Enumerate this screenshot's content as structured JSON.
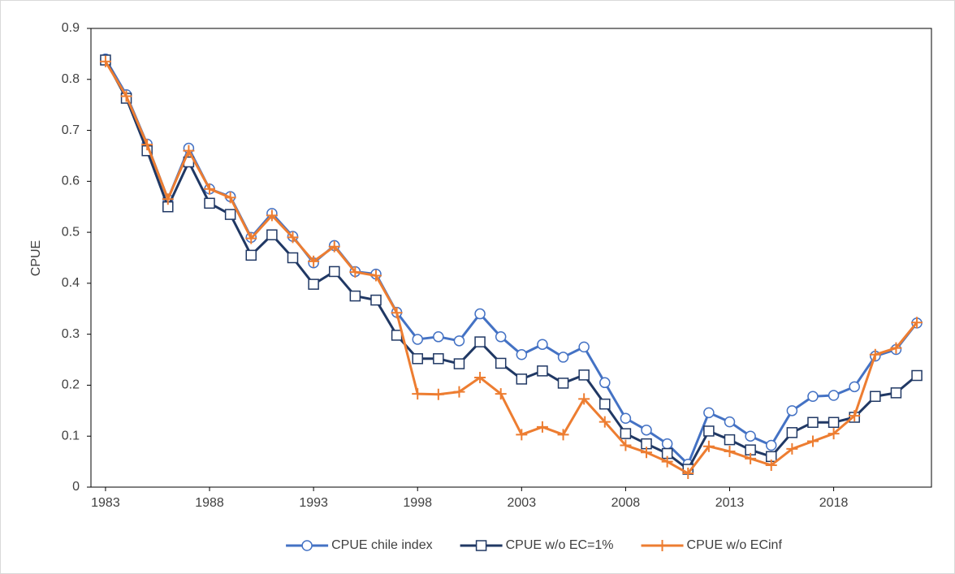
{
  "chart_data": {
    "type": "line",
    "y_label": "CPUE",
    "x": [
      1983,
      1984,
      1985,
      1986,
      1987,
      1988,
      1989,
      1990,
      1991,
      1992,
      1993,
      1994,
      1995,
      1996,
      1997,
      1998,
      1999,
      2000,
      2001,
      2002,
      2003,
      2004,
      2005,
      2006,
      2007,
      2008,
      2009,
      2010,
      2011,
      2012,
      2013,
      2014,
      2015,
      2016,
      2017,
      2018,
      2019,
      2020,
      2021,
      2022
    ],
    "xlim": [
      1982.3,
      2022.7
    ],
    "xticks": [
      1983,
      1988,
      1993,
      1998,
      2003,
      2008,
      2013,
      2018
    ],
    "ylim": [
      0,
      0.9
    ],
    "yticks": [
      0,
      0.1,
      0.2,
      0.3,
      0.4,
      0.5,
      0.6,
      0.7,
      0.8,
      0.9
    ],
    "legend": "bottom",
    "series": [
      {
        "name": "CPUE chile index",
        "color": "#4472c4",
        "marker": "circle",
        "values": [
          0.84,
          0.77,
          0.673,
          0.565,
          0.665,
          0.585,
          0.57,
          0.49,
          0.537,
          0.492,
          0.44,
          0.474,
          0.423,
          0.418,
          0.343,
          0.29,
          0.295,
          0.287,
          0.34,
          0.295,
          0.26,
          0.28,
          0.255,
          0.275,
          0.205,
          0.135,
          0.112,
          0.085,
          0.045,
          0.146,
          0.128,
          0.1,
          0.082,
          0.15,
          0.178,
          0.18,
          0.197,
          0.257,
          0.27,
          0.322
        ]
      },
      {
        "name": "CPUE w/o EC=1%",
        "color": "#203864",
        "marker": "square",
        "values": [
          0.838,
          0.763,
          0.66,
          0.55,
          0.638,
          0.557,
          0.535,
          0.455,
          0.495,
          0.45,
          0.398,
          0.423,
          0.375,
          0.367,
          0.298,
          0.252,
          0.252,
          0.242,
          0.285,
          0.243,
          0.212,
          0.228,
          0.204,
          0.22,
          0.163,
          0.105,
          0.085,
          0.066,
          0.035,
          0.11,
          0.093,
          0.073,
          0.06,
          0.107,
          0.127,
          0.127,
          0.137,
          0.178,
          0.185,
          0.219
        ]
      },
      {
        "name": "CPUE w/o ECinf",
        "color": "#ed7d31",
        "marker": "plus",
        "values": [
          0.835,
          0.767,
          0.672,
          0.565,
          0.66,
          0.585,
          0.568,
          0.488,
          0.533,
          0.49,
          0.443,
          0.472,
          0.422,
          0.415,
          0.342,
          0.183,
          0.182,
          0.187,
          0.215,
          0.183,
          0.103,
          0.118,
          0.103,
          0.173,
          0.128,
          0.082,
          0.068,
          0.05,
          0.027,
          0.08,
          0.07,
          0.056,
          0.043,
          0.075,
          0.09,
          0.105,
          0.14,
          0.26,
          0.273,
          0.323
        ]
      }
    ]
  }
}
